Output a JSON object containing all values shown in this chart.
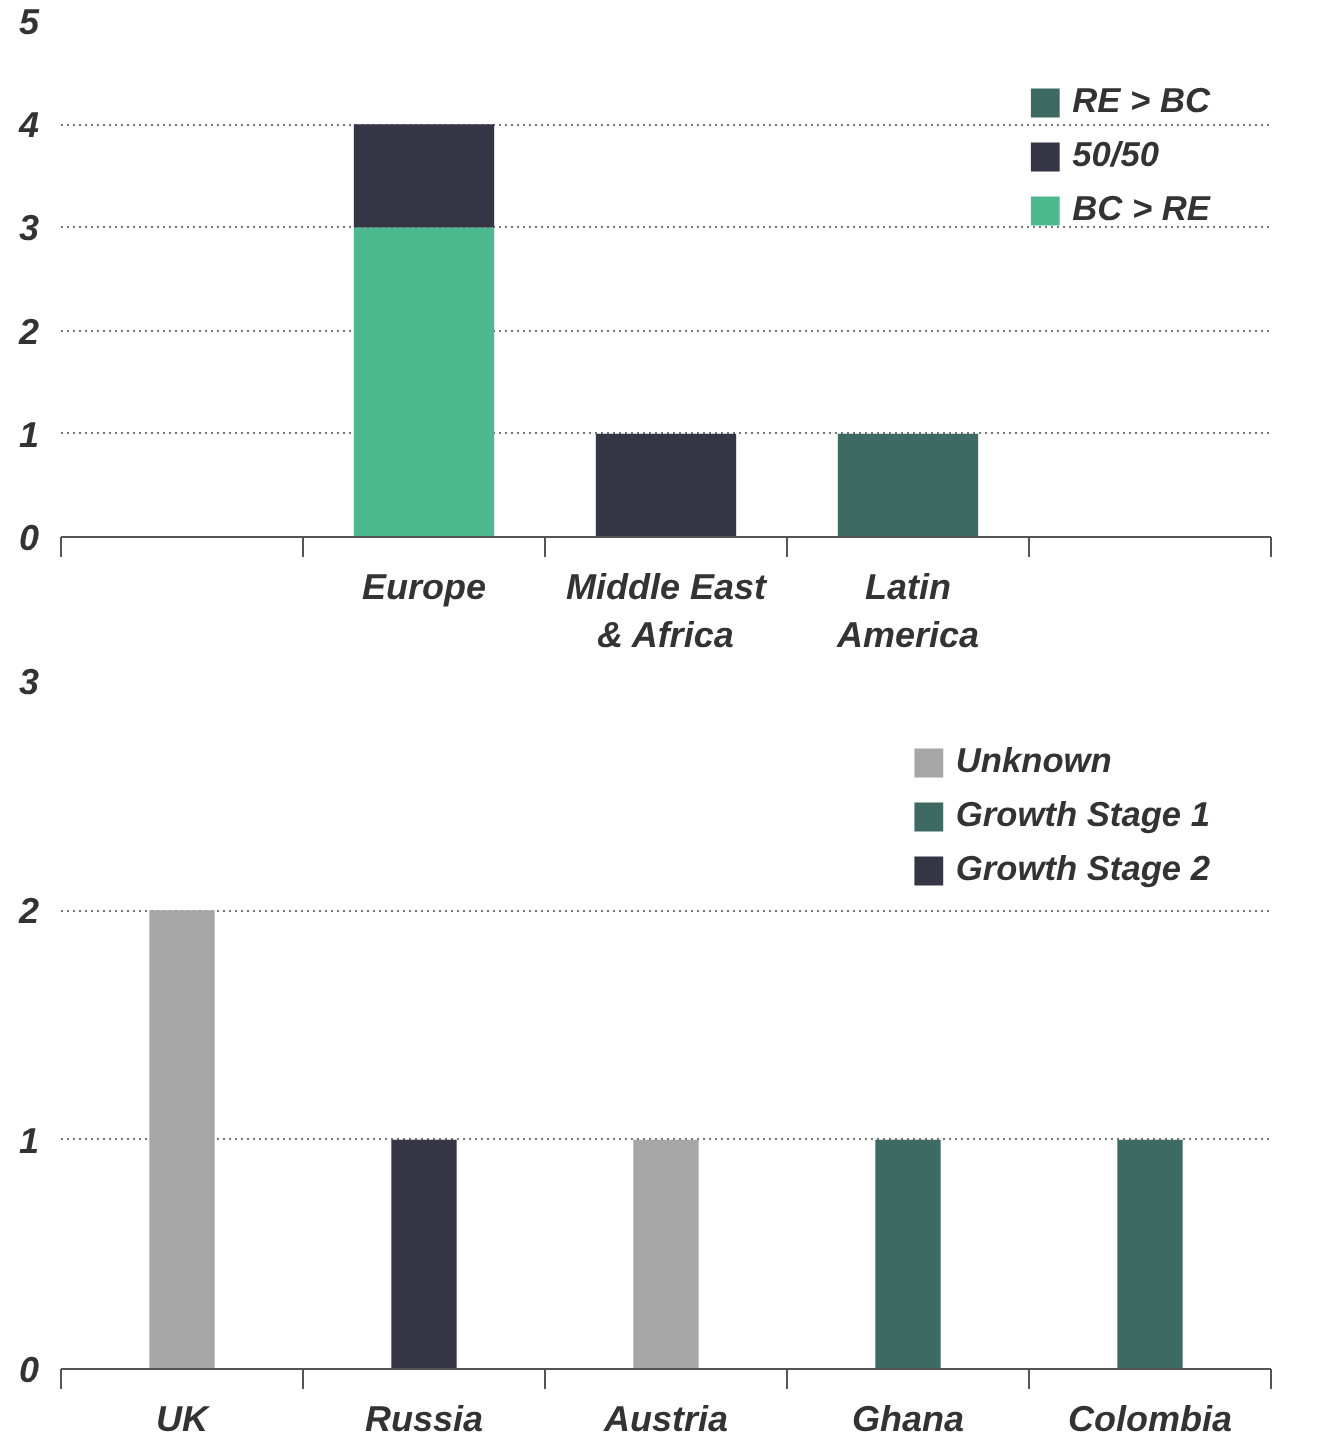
{
  "chart_data": [
    {
      "type": "bar",
      "stacked": true,
      "categories": [
        null,
        "Europe",
        "Middle East\n& Africa",
        "Latin\nAmerica",
        null
      ],
      "series": [
        {
          "name": "BC > RE",
          "color": "#4cb98f",
          "values": [
            null,
            3,
            0,
            0,
            null
          ]
        },
        {
          "name": "50/50",
          "color": "#363545",
          "values": [
            null,
            1,
            1,
            0,
            null
          ]
        },
        {
          "name": "RE > BC",
          "color": "#3d6b63",
          "values": [
            null,
            0,
            0,
            1,
            null
          ]
        }
      ],
      "ylim": [
        0,
        5
      ],
      "yticks": [
        0,
        1,
        2,
        3,
        4,
        5
      ],
      "grid": "y",
      "legend": "top right"
    },
    {
      "type": "bar",
      "stacked": true,
      "categories": [
        "UK",
        "Russia",
        "Austria",
        "Ghana",
        "Colombia"
      ],
      "series": [
        {
          "name": "Growth Stage 2",
          "color": "#363545",
          "values": [
            null,
            1,
            null,
            null,
            null
          ]
        },
        {
          "name": "Growth Stage 1",
          "color": "#3d6b63",
          "values": [
            null,
            null,
            null,
            1,
            1
          ]
        },
        {
          "name": "Unknown",
          "color": "#a6a6a6",
          "values": [
            2,
            null,
            1,
            null,
            null
          ]
        }
      ],
      "ylim": [
        0,
        3
      ],
      "yticks": [
        0,
        1,
        2,
        3
      ],
      "grid": "y",
      "legend": "top right"
    }
  ]
}
